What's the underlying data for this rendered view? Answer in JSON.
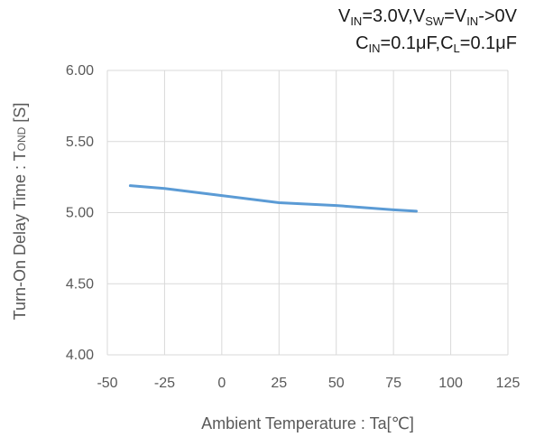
{
  "conditions": {
    "line1": {
      "parts": [
        {
          "t": "V"
        },
        {
          "sub": "IN"
        },
        {
          "t": "=3.0V,V"
        },
        {
          "sub": "SW"
        },
        {
          "t": "=V"
        },
        {
          "sub": "IN"
        },
        {
          "t": "->0V"
        }
      ]
    },
    "line2": {
      "parts": [
        {
          "t": "C"
        },
        {
          "sub": "IN"
        },
        {
          "t": "=0.1μF,C"
        },
        {
          "sub": "L"
        },
        {
          "t": "=0.1μF"
        }
      ]
    }
  },
  "chart_data": {
    "type": "line",
    "xlabel": "Ambient Temperature  : Ta[℃]",
    "ylabel_main": "Turn-On Delay Time : T",
    "ylabel_sub": "OND",
    "ylabel_unit": " [S]",
    "xlim": [
      -50,
      125
    ],
    "ylim": [
      4.0,
      6.0
    ],
    "x_ticks": [
      "-50",
      "-25",
      "0",
      "25",
      "50",
      "75",
      "100",
      "125"
    ],
    "x_tick_values": [
      -50,
      -25,
      0,
      25,
      50,
      75,
      100,
      125
    ],
    "y_ticks": [
      "4.00",
      "4.50",
      "5.00",
      "5.50",
      "6.00"
    ],
    "y_tick_values": [
      4.0,
      4.5,
      5.0,
      5.5,
      6.0
    ],
    "grid": true,
    "series": [
      {
        "color": "#5b9bd5",
        "x": [
          -40,
          -25,
          0,
          25,
          50,
          75,
          85
        ],
        "y": [
          5.19,
          5.17,
          5.12,
          5.07,
          5.05,
          5.02,
          5.01
        ]
      }
    ]
  }
}
